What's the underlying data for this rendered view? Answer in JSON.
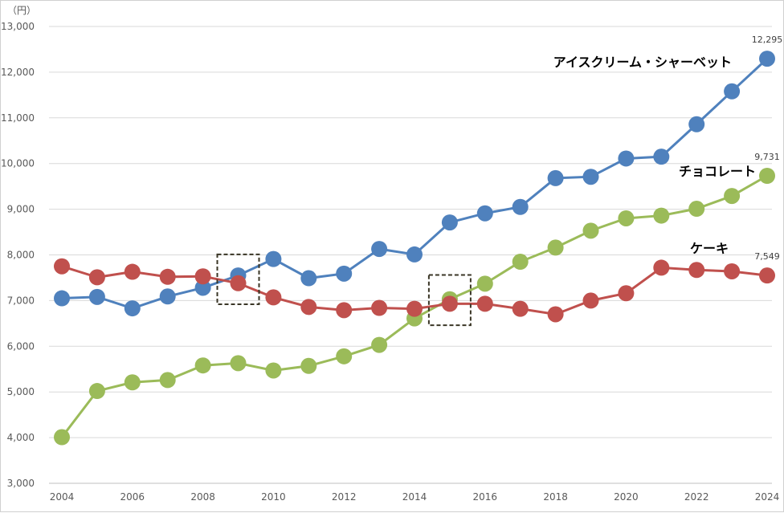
{
  "chart_data": {
    "type": "line",
    "y_unit_label": "（円）",
    "ylim": [
      3000,
      13000
    ],
    "y_ticks": [
      "3,000",
      "4,000",
      "5,000",
      "6,000",
      "7,000",
      "8,000",
      "9,000",
      "10,000",
      "11,000",
      "12,000",
      "13,000"
    ],
    "x": [
      2004,
      2005,
      2006,
      2007,
      2008,
      2009,
      2010,
      2011,
      2012,
      2013,
      2014,
      2015,
      2016,
      2017,
      2018,
      2019,
      2020,
      2021,
      2022,
      2023,
      2024
    ],
    "x_tick_labels": [
      "2004",
      "2006",
      "2008",
      "2010",
      "2012",
      "2014",
      "2016",
      "2018",
      "2020",
      "2022",
      "2024"
    ],
    "grid": "horizontal",
    "series": [
      {
        "name": "アイスクリーム・シャーベット",
        "color": "#4f81bd",
        "values": [
          7050,
          7080,
          6830,
          7090,
          7280,
          7550,
          7910,
          7490,
          7590,
          8130,
          8010,
          8710,
          8910,
          9050,
          9680,
          9710,
          10110,
          10150,
          10860,
          11580,
          12295
        ],
        "end_label": "12,295"
      },
      {
        "name": "チョコレート",
        "color": "#9bbb59",
        "values": [
          4010,
          5020,
          5210,
          5260,
          5580,
          5630,
          5470,
          5570,
          5780,
          6030,
          6610,
          7030,
          7370,
          7850,
          8160,
          8530,
          8800,
          8860,
          9010,
          9290,
          9731
        ],
        "end_label": "9,731"
      },
      {
        "name": "ケーキ",
        "color": "#c0504d",
        "values": [
          7750,
          7510,
          7630,
          7520,
          7530,
          7380,
          7070,
          6860,
          6790,
          6840,
          6820,
          6930,
          6930,
          6820,
          6700,
          7000,
          7160,
          7720,
          7670,
          7640,
          7549
        ],
        "end_label": "7,549"
      }
    ],
    "highlights": [
      {
        "x": 2009,
        "y_from": 6920,
        "y_to": 8010
      },
      {
        "x": 2015,
        "y_from": 6460,
        "y_to": 7560
      }
    ]
  }
}
